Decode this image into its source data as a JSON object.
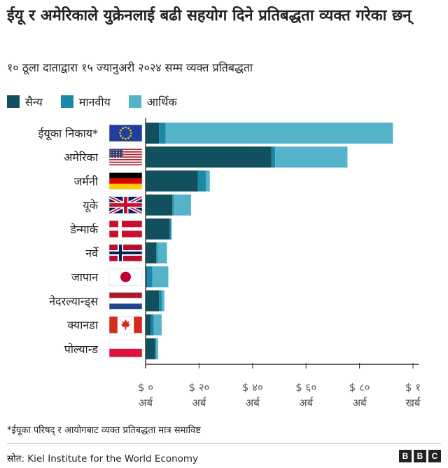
{
  "header": {
    "title": "ईयू र अमेरिकाले युक्रेनलाई बढी सहयोग दिने प्रतिबद्धता व्यक्त गरेका छन्",
    "subtitle": "१० ठूला दाताद्वारा १५ ज्यानुअरी २०२४ सम्म व्यक्त प्रतिबद्धता"
  },
  "legend": [
    {
      "label": "सैन्य",
      "color": "#12505f"
    },
    {
      "label": "मानवीय",
      "color": "#1a88a6"
    },
    {
      "label": "आर्थिक",
      "color": "#54b3c9"
    }
  ],
  "chart_data": {
    "type": "bar",
    "orientation": "horizontal",
    "stacked": true,
    "unit": "billion USD",
    "categories": [
      "ईयूका निकाय*",
      "अमेरिका",
      "जर्मनी",
      "यूके",
      "डेन्मार्क",
      "नर्वे",
      "जापान",
      "नेदरल्यान्ड्स",
      "क्यानडा",
      "पोल्यान्ड"
    ],
    "flags": [
      "eu",
      "us",
      "de",
      "gb",
      "dk",
      "no",
      "jp",
      "nl",
      "ca",
      "pl"
    ],
    "series": [
      {
        "name": "सैन्य",
        "values": [
          5,
          47,
          19.5,
          10,
          9,
          4,
          0.5,
          5,
          2,
          3.5
        ]
      },
      {
        "name": "मानवीय",
        "values": [
          2.5,
          1.5,
          3,
          0.5,
          0.5,
          0.5,
          2,
          1,
          1,
          0.5
        ]
      },
      {
        "name": "आर्थिक",
        "values": [
          85,
          27,
          1.5,
          6.5,
          0.3,
          3.5,
          6,
          1,
          3,
          0.7
        ]
      }
    ],
    "xlim": [
      0,
      100
    ],
    "ticks": [
      {
        "value": 0,
        "line1": "$ ०",
        "line2": "अर्ब"
      },
      {
        "value": 20,
        "line1": "$ २०",
        "line2": "अर्ब"
      },
      {
        "value": 40,
        "line1": "$ ४०",
        "line2": "अर्ब"
      },
      {
        "value": 60,
        "line1": "$ ६०",
        "line2": "अर्ब"
      },
      {
        "value": 80,
        "line1": "$ ८०",
        "line2": "अर्ब"
      },
      {
        "value": 100,
        "line1": "$ १",
        "line2": "खर्ब"
      }
    ]
  },
  "footnote": "*ईयूका परिषद् र आयोगबाट व्यक्त प्रतिबद्धता मात्र समाविष्ट",
  "source": "स्रोत: Kiel Institute for the World Economy",
  "brand": [
    "B",
    "B",
    "C"
  ],
  "colors": {
    "axis": "#333333",
    "tick_label": "#555555"
  }
}
